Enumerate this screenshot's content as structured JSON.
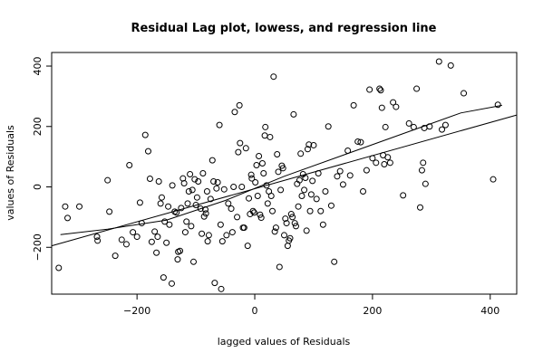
{
  "chart_data": {
    "type": "scatter",
    "title": "Residual Lag plot, lowess, and regression line",
    "xlabel": "lagged values of Residuals",
    "ylabel": "values of Residuals",
    "xlim": [
      -345,
      445
    ],
    "ylim": [
      -355,
      445
    ],
    "x_ticks": [
      -200,
      0,
      200,
      400
    ],
    "y_ticks": [
      -200,
      0,
      200,
      400
    ],
    "grid": false,
    "legend": "none",
    "colors": {
      "points": "#000000",
      "lines": "#000000",
      "frame": "#000000",
      "background": "#ffffff"
    },
    "series": [
      {
        "type": "scatter",
        "marker": "open-circle",
        "points": [
          [
            -333,
            -268
          ],
          [
            -322,
            -65
          ],
          [
            -318,
            -103
          ],
          [
            -298,
            -65
          ],
          [
            -268,
            -165
          ],
          [
            -267,
            -178
          ],
          [
            -250,
            22
          ],
          [
            -247,
            -82
          ],
          [
            -237,
            -228
          ],
          [
            -226,
            -175
          ],
          [
            -218,
            -190
          ],
          [
            -213,
            72
          ],
          [
            -207,
            -150
          ],
          [
            -200,
            -165
          ],
          [
            -195,
            -52
          ],
          [
            -192,
            -120
          ],
          [
            -186,
            172
          ],
          [
            -181,
            118
          ],
          [
            -178,
            27
          ],
          [
            -175,
            -182
          ],
          [
            -170,
            -148
          ],
          [
            -167,
            -218
          ],
          [
            -165,
            -165
          ],
          [
            -163,
            18
          ],
          [
            -160,
            -55
          ],
          [
            -158,
            -35
          ],
          [
            -155,
            -300
          ],
          [
            -153,
            -115
          ],
          [
            -150,
            -185
          ],
          [
            -147,
            -65
          ],
          [
            -145,
            -125
          ],
          [
            -141,
            -320
          ],
          [
            -140,
            5
          ],
          [
            -136,
            -82
          ],
          [
            -133,
            -85
          ],
          [
            -131,
            -240
          ],
          [
            -130,
            -215
          ],
          [
            -127,
            -212
          ],
          [
            -125,
            -70
          ],
          [
            -122,
            28
          ],
          [
            -120,
            12
          ],
          [
            -118,
            -150
          ],
          [
            -116,
            -115
          ],
          [
            -114,
            -55
          ],
          [
            -112,
            -15
          ],
          [
            -110,
            42
          ],
          [
            -108,
            -130
          ],
          [
            -106,
            -10
          ],
          [
            -104,
            -248
          ],
          [
            -102,
            25
          ],
          [
            -100,
            -60
          ],
          [
            -98,
            -35
          ],
          [
            -96,
            18
          ],
          [
            -92,
            -72
          ],
          [
            -90,
            -155
          ],
          [
            -88,
            45
          ],
          [
            -86,
            -98
          ],
          [
            -84,
            -75
          ],
          [
            -83,
            -88
          ],
          [
            -81,
            -15
          ],
          [
            -80,
            -180
          ],
          [
            -78,
            -160
          ],
          [
            -75,
            -40
          ],
          [
            -72,
            88
          ],
          [
            -70,
            18
          ],
          [
            -68,
            -318
          ],
          [
            -65,
            -5
          ],
          [
            -63,
            15
          ],
          [
            -60,
            205
          ],
          [
            -58,
            -125
          ],
          [
            -57,
            -338
          ],
          [
            -55,
            -180
          ],
          [
            -52,
            -8
          ],
          [
            -48,
            -160
          ],
          [
            -45,
            -55
          ],
          [
            -40,
            -72
          ],
          [
            -38,
            -150
          ],
          [
            -36,
            0
          ],
          [
            -34,
            248
          ],
          [
            -30,
            -100
          ],
          [
            -28,
            115
          ],
          [
            -26,
            270
          ],
          [
            -25,
            145
          ],
          [
            -22,
            0
          ],
          [
            -20,
            -135
          ],
          [
            -18,
            -135
          ],
          [
            -15,
            128
          ],
          [
            -12,
            -195
          ],
          [
            -10,
            -38
          ],
          [
            -8,
            -90
          ],
          [
            -6,
            40
          ],
          [
            -5,
            28
          ],
          [
            -3,
            -80
          ],
          [
            -1,
            -85
          ],
          [
            1,
            15
          ],
          [
            3,
            72
          ],
          [
            5,
            -30
          ],
          [
            7,
            102
          ],
          [
            9,
            -92
          ],
          [
            11,
            -102
          ],
          [
            13,
            78
          ],
          [
            15,
            45
          ],
          [
            17,
            170
          ],
          [
            18,
            198
          ],
          [
            20,
            5
          ],
          [
            22,
            -55
          ],
          [
            24,
            -15
          ],
          [
            26,
            165
          ],
          [
            28,
            -30
          ],
          [
            30,
            -80
          ],
          [
            32,
            365
          ],
          [
            34,
            -148
          ],
          [
            36,
            -135
          ],
          [
            38,
            108
          ],
          [
            40,
            50
          ],
          [
            42,
            -265
          ],
          [
            44,
            -10
          ],
          [
            46,
            70
          ],
          [
            48,
            62
          ],
          [
            50,
            -160
          ],
          [
            52,
            -105
          ],
          [
            54,
            -120
          ],
          [
            56,
            -195
          ],
          [
            58,
            -178
          ],
          [
            60,
            -170
          ],
          [
            62,
            -90
          ],
          [
            64,
            -100
          ],
          [
            66,
            240
          ],
          [
            68,
            -120
          ],
          [
            70,
            -130
          ],
          [
            72,
            10
          ],
          [
            74,
            -65
          ],
          [
            76,
            22
          ],
          [
            78,
            110
          ],
          [
            80,
            -30
          ],
          [
            82,
            42
          ],
          [
            84,
            -10
          ],
          [
            86,
            30
          ],
          [
            88,
            -145
          ],
          [
            90,
            125
          ],
          [
            92,
            140
          ],
          [
            94,
            -80
          ],
          [
            96,
            -25
          ],
          [
            98,
            20
          ],
          [
            100,
            138
          ],
          [
            105,
            -40
          ],
          [
            108,
            45
          ],
          [
            112,
            -80
          ],
          [
            116,
            -125
          ],
          [
            120,
            -15
          ],
          [
            125,
            200
          ],
          [
            130,
            -62
          ],
          [
            135,
            -248
          ],
          [
            140,
            35
          ],
          [
            145,
            52
          ],
          [
            150,
            8
          ],
          [
            158,
            120
          ],
          [
            162,
            38
          ],
          [
            168,
            270
          ],
          [
            175,
            150
          ],
          [
            180,
            148
          ],
          [
            184,
            -15
          ],
          [
            190,
            55
          ],
          [
            195,
            322
          ],
          [
            200,
            95
          ],
          [
            206,
            80
          ],
          [
            212,
            325
          ],
          [
            214,
            320
          ],
          [
            216,
            262
          ],
          [
            218,
            105
          ],
          [
            220,
            75
          ],
          [
            222,
            198
          ],
          [
            226,
            98
          ],
          [
            230,
            80
          ],
          [
            235,
            280
          ],
          [
            240,
            265
          ],
          [
            252,
            -28
          ],
          [
            262,
            210
          ],
          [
            270,
            198
          ],
          [
            275,
            325
          ],
          [
            281,
            -68
          ],
          [
            284,
            55
          ],
          [
            286,
            80
          ],
          [
            288,
            195
          ],
          [
            290,
            10
          ],
          [
            297,
            200
          ],
          [
            313,
            415
          ],
          [
            318,
            190
          ],
          [
            324,
            205
          ],
          [
            333,
            402
          ],
          [
            355,
            310
          ],
          [
            405,
            25
          ],
          [
            413,
            272
          ]
        ]
      },
      {
        "type": "line",
        "name": "lowess",
        "x": [
          -330,
          -250,
          -150,
          -50,
          50,
          150,
          250,
          350,
          420
        ],
        "y": [
          -158,
          -140,
          -110,
          -45,
          35,
          105,
          175,
          245,
          270
        ]
      },
      {
        "type": "line",
        "name": "regression",
        "x": [
          -345,
          445
        ],
        "y": [
          -195,
          238
        ]
      }
    ]
  }
}
